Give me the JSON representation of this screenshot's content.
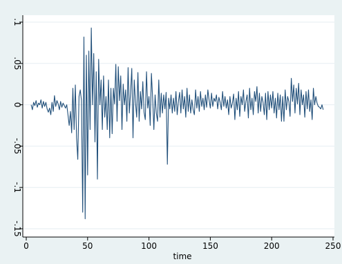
{
  "chart_data": {
    "type": "line",
    "title": "",
    "xlabel": "time",
    "ylabel": "",
    "xlim": [
      0,
      250
    ],
    "ylim": [
      -0.15,
      0.1
    ],
    "grid": true,
    "x_ticks": [
      0,
      50,
      100,
      150,
      200,
      250
    ],
    "x_tick_labels": [
      "0",
      "50",
      "100",
      "150",
      "200",
      "250"
    ],
    "y_ticks": [
      0.1,
      0.05,
      0,
      -0.05,
      -0.1,
      -0.15
    ],
    "y_tick_labels": [
      ".1",
      ".05",
      "0",
      "-.05",
      "-.1",
      "-.15"
    ],
    "colors": {
      "line": "#1f4e79",
      "background": "#eaf2f3",
      "plot_area": "#ffffff",
      "grid": "#e6eef2"
    },
    "series": [
      {
        "x_start": 4,
        "x_step": 1,
        "values": [
          0.0,
          -0.006,
          0.003,
          -0.001,
          0.005,
          -0.003,
          0.002,
          0.0,
          0.006,
          -0.004,
          0.004,
          -0.002,
          0.003,
          -0.005,
          -0.009,
          -0.004,
          -0.012,
          0.003,
          -0.008,
          0.011,
          -0.002,
          0.005,
          0.001,
          -0.006,
          0.004,
          -0.003,
          0.002,
          -0.001,
          -0.004,
          0.0,
          -0.012,
          -0.025,
          -0.008,
          -0.034,
          0.02,
          -0.03,
          0.024,
          -0.04,
          -0.066,
          0.01,
          0.018,
          0.005,
          -0.13,
          0.082,
          -0.138,
          0.06,
          -0.085,
          0.065,
          -0.03,
          0.093,
          0.0,
          0.062,
          -0.045,
          0.04,
          -0.09,
          0.055,
          0.0,
          0.03,
          -0.03,
          0.035,
          -0.015,
          0.01,
          -0.03,
          0.03,
          -0.04,
          0.02,
          -0.035,
          0.02,
          0.001,
          0.049,
          -0.02,
          0.046,
          0.005,
          0.035,
          -0.03,
          0.025,
          0.0,
          0.018,
          -0.02,
          0.045,
          -0.01,
          0.015,
          0.044,
          -0.04,
          0.03,
          0.003,
          -0.015,
          0.039,
          -0.02,
          0.016,
          -0.005,
          0.028,
          -0.009,
          -0.018,
          0.04,
          -0.004,
          0.01,
          -0.025,
          0.038,
          0.008,
          -0.03,
          0.012,
          -0.01,
          -0.02,
          0.03,
          -0.015,
          0.014,
          -0.01,
          0.012,
          -0.005,
          0.015,
          -0.072,
          0.008,
          -0.005,
          0.012,
          -0.01,
          0.008,
          -0.008,
          0.016,
          -0.012,
          0.004,
          0.015,
          -0.01,
          0.018,
          -0.005,
          0.01,
          -0.015,
          0.02,
          -0.008,
          0.012,
          -0.01,
          0.006,
          -0.006,
          -0.012,
          0.018,
          -0.004,
          0.01,
          -0.008,
          0.016,
          -0.002,
          0.008,
          -0.006,
          0.012,
          -0.003,
          0.018,
          0.006,
          -0.004,
          0.014,
          -0.002,
          0.008,
          0.004,
          0.012,
          -0.005,
          0.009,
          0.003,
          -0.006,
          0.016,
          -0.002,
          0.01,
          -0.004,
          0.006,
          -0.012,
          0.01,
          -0.004,
          0.002,
          0.013,
          -0.018,
          0.008,
          -0.006,
          0.016,
          -0.014,
          0.01,
          0.0,
          0.018,
          -0.008,
          0.004,
          0.012,
          -0.016,
          0.02,
          -0.006,
          0.008,
          -0.012,
          0.016,
          0.004,
          0.022,
          -0.01,
          0.014,
          -0.008,
          0.01,
          0.003,
          -0.012,
          0.014,
          -0.018,
          0.016,
          -0.006,
          0.012,
          -0.004,
          0.016,
          -0.01,
          0.008,
          -0.016,
          0.014,
          -0.006,
          0.012,
          -0.02,
          0.01,
          -0.02,
          0.018,
          -0.006,
          0.01,
          0.004,
          -0.014,
          0.032,
          0.004,
          0.024,
          -0.01,
          0.02,
          0.001,
          0.026,
          -0.012,
          0.018,
          0.0,
          0.012,
          -0.015,
          0.016,
          -0.005,
          0.018,
          -0.008,
          0.006,
          -0.018,
          0.02,
          0.0,
          0.01,
          0.002,
          -0.002,
          -0.003,
          -0.005,
          0.0,
          -0.006
        ]
      }
    ]
  }
}
